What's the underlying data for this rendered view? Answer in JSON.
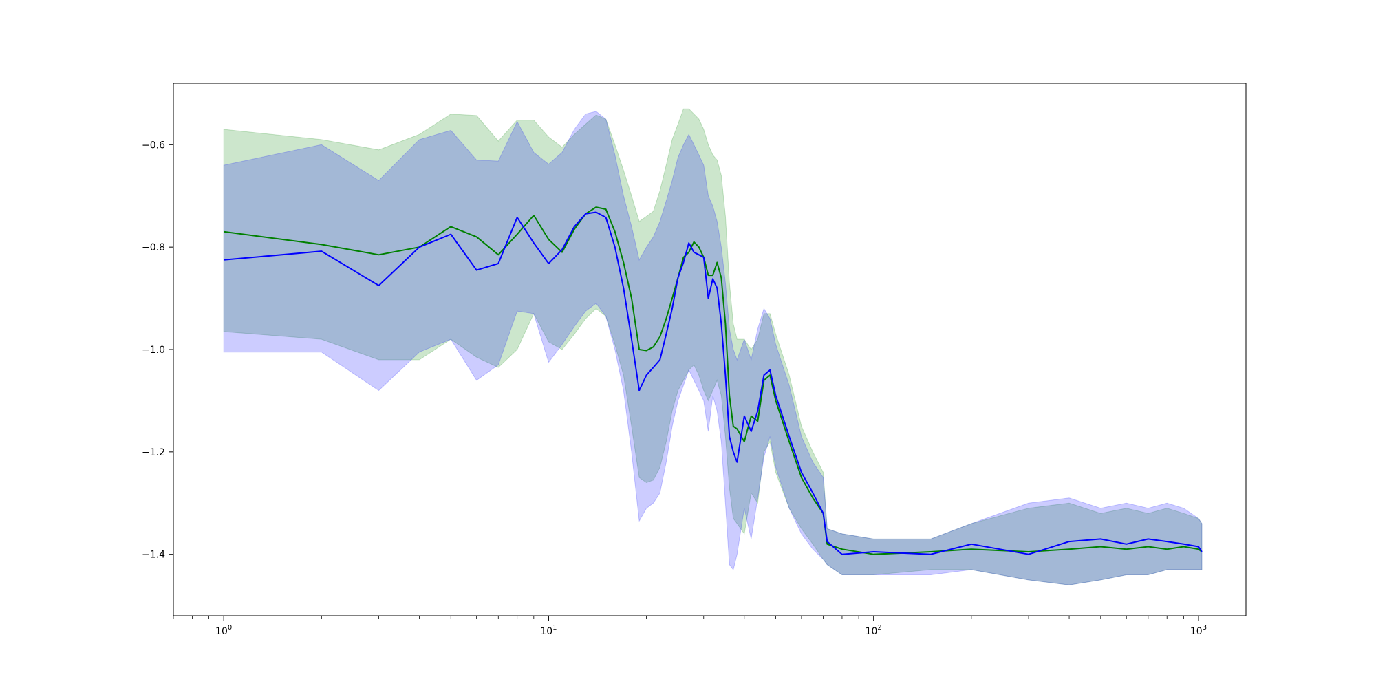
{
  "chart_data": {
    "type": "line",
    "title": "",
    "xlabel": "",
    "ylabel": "",
    "xscale": "log",
    "xlim": [
      0.7,
      1400
    ],
    "ylim": [
      -1.52,
      -0.48
    ],
    "grid": false,
    "legend": "none",
    "x_ticks": [
      {
        "value": 1,
        "base": "10",
        "exp": "0"
      },
      {
        "value": 10,
        "base": "10",
        "exp": "1"
      },
      {
        "value": 100,
        "base": "10",
        "exp": "2"
      },
      {
        "value": 1000,
        "base": "10",
        "exp": "3"
      }
    ],
    "y_ticks": [
      {
        "value": -1.4,
        "label": "−1.4"
      },
      {
        "value": -1.2,
        "label": "−1.2"
      },
      {
        "value": -1.0,
        "label": "−1.0"
      },
      {
        "value": -0.8,
        "label": "−0.8"
      },
      {
        "value": -0.6,
        "label": "−0.6"
      }
    ],
    "series": [
      {
        "color": "#008000",
        "band_color": "#008000",
        "band_opacity": 0.2,
        "x": [
          1,
          2,
          3,
          4,
          5,
          6,
          7,
          8,
          9,
          10,
          11,
          12,
          13,
          14,
          15,
          16,
          17,
          18,
          19,
          20,
          21,
          22,
          23,
          24,
          25,
          26,
          27,
          28,
          29,
          30,
          31,
          32,
          33,
          34,
          35,
          36,
          37,
          38,
          40,
          42,
          44,
          46,
          48,
          50,
          55,
          60,
          65,
          70,
          72,
          80,
          100,
          150,
          200,
          300,
          400,
          500,
          600,
          700,
          800,
          900,
          1000,
          1024
        ],
        "y": [
          -0.77,
          -0.795,
          -0.815,
          -0.8,
          -0.76,
          -0.78,
          -0.815,
          -0.775,
          -0.738,
          -0.785,
          -0.81,
          -0.765,
          -0.735,
          -0.722,
          -0.726,
          -0.77,
          -0.83,
          -0.9,
          -1.0,
          -1.002,
          -0.995,
          -0.975,
          -0.94,
          -0.9,
          -0.86,
          -0.82,
          -0.81,
          -0.79,
          -0.8,
          -0.82,
          -0.855,
          -0.855,
          -0.83,
          -0.86,
          -0.95,
          -1.09,
          -1.15,
          -1.155,
          -1.18,
          -1.13,
          -1.14,
          -1.06,
          -1.05,
          -1.1,
          -1.18,
          -1.25,
          -1.29,
          -1.32,
          -1.38,
          -1.39,
          -1.4,
          -1.395,
          -1.39,
          -1.395,
          -1.39,
          -1.385,
          -1.39,
          -1.385,
          -1.39,
          -1.385,
          -1.39,
          -1.395
        ],
        "upper": [
          -0.57,
          -0.59,
          -0.61,
          -0.58,
          -0.54,
          -0.543,
          -0.593,
          -0.552,
          -0.552,
          -0.585,
          -0.605,
          -0.58,
          -0.56,
          -0.542,
          -0.55,
          -0.6,
          -0.65,
          -0.7,
          -0.75,
          -0.74,
          -0.73,
          -0.69,
          -0.64,
          -0.59,
          -0.56,
          -0.53,
          -0.53,
          -0.54,
          -0.55,
          -0.57,
          -0.6,
          -0.62,
          -0.63,
          -0.66,
          -0.74,
          -0.87,
          -0.95,
          -0.98,
          -0.98,
          -1.0,
          -0.98,
          -0.93,
          -0.93,
          -0.97,
          -1.05,
          -1.15,
          -1.2,
          -1.24,
          -1.35,
          -1.36,
          -1.37,
          -1.37,
          -1.34,
          -1.31,
          -1.3,
          -1.32,
          -1.31,
          -1.32,
          -1.31,
          -1.32,
          -1.33,
          -1.34
        ],
        "lower": [
          -0.965,
          -0.98,
          -1.02,
          -1.02,
          -0.98,
          -1.015,
          -1.035,
          -1.0,
          -0.93,
          -0.985,
          -1.0,
          -0.97,
          -0.94,
          -0.92,
          -0.935,
          -0.99,
          -1.05,
          -1.15,
          -1.25,
          -1.26,
          -1.255,
          -1.23,
          -1.18,
          -1.12,
          -1.08,
          -1.06,
          -1.04,
          -1.03,
          -1.05,
          -1.08,
          -1.1,
          -1.08,
          -1.06,
          -1.09,
          -1.17,
          -1.27,
          -1.33,
          -1.34,
          -1.36,
          -1.28,
          -1.3,
          -1.2,
          -1.18,
          -1.24,
          -1.31,
          -1.35,
          -1.38,
          -1.41,
          -1.42,
          -1.44,
          -1.44,
          -1.43,
          -1.43,
          -1.45,
          -1.46,
          -1.45,
          -1.44,
          -1.44,
          -1.43,
          -1.43,
          -1.43,
          -1.43
        ]
      },
      {
        "color": "#0000ff",
        "band_color": "#0000ff",
        "band_opacity": 0.2,
        "x": [
          1,
          2,
          3,
          4,
          5,
          6,
          7,
          8,
          9,
          10,
          11,
          12,
          13,
          14,
          15,
          16,
          17,
          18,
          19,
          20,
          21,
          22,
          23,
          24,
          25,
          26,
          27,
          28,
          29,
          30,
          31,
          32,
          33,
          34,
          35,
          36,
          37,
          38,
          40,
          42,
          44,
          46,
          48,
          50,
          55,
          60,
          65,
          70,
          72,
          80,
          100,
          150,
          200,
          300,
          400,
          500,
          600,
          700,
          800,
          900,
          1000,
          1024
        ],
        "y": [
          -0.825,
          -0.808,
          -0.875,
          -0.8,
          -0.775,
          -0.845,
          -0.832,
          -0.742,
          -0.792,
          -0.832,
          -0.805,
          -0.76,
          -0.735,
          -0.732,
          -0.742,
          -0.8,
          -0.88,
          -0.98,
          -1.08,
          -1.05,
          -1.035,
          -1.02,
          -0.97,
          -0.92,
          -0.86,
          -0.83,
          -0.792,
          -0.81,
          -0.815,
          -0.82,
          -0.9,
          -0.862,
          -0.88,
          -0.95,
          -1.05,
          -1.17,
          -1.2,
          -1.22,
          -1.13,
          -1.16,
          -1.12,
          -1.05,
          -1.04,
          -1.09,
          -1.17,
          -1.24,
          -1.28,
          -1.32,
          -1.375,
          -1.4,
          -1.395,
          -1.4,
          -1.38,
          -1.4,
          -1.375,
          -1.37,
          -1.38,
          -1.37,
          -1.375,
          -1.38,
          -1.385,
          -1.395
        ],
        "upper": [
          -0.64,
          -0.6,
          -0.67,
          -0.59,
          -0.572,
          -0.63,
          -0.632,
          -0.555,
          -0.615,
          -0.638,
          -0.615,
          -0.57,
          -0.54,
          -0.535,
          -0.55,
          -0.62,
          -0.7,
          -0.76,
          -0.825,
          -0.8,
          -0.78,
          -0.75,
          -0.71,
          -0.67,
          -0.625,
          -0.6,
          -0.58,
          -0.6,
          -0.62,
          -0.64,
          -0.7,
          -0.72,
          -0.75,
          -0.8,
          -0.87,
          -0.96,
          -1.0,
          -1.02,
          -0.98,
          -1.02,
          -0.96,
          -0.92,
          -0.94,
          -0.99,
          -1.07,
          -1.17,
          -1.22,
          -1.25,
          -1.35,
          -1.36,
          -1.37,
          -1.37,
          -1.34,
          -1.3,
          -1.29,
          -1.31,
          -1.3,
          -1.31,
          -1.3,
          -1.31,
          -1.33,
          -1.34
        ],
        "lower": [
          -1.005,
          -1.005,
          -1.08,
          -1.005,
          -0.98,
          -1.06,
          -1.03,
          -0.925,
          -0.93,
          -1.025,
          -0.99,
          -0.955,
          -0.925,
          -0.91,
          -0.935,
          -1.0,
          -1.08,
          -1.2,
          -1.335,
          -1.31,
          -1.3,
          -1.28,
          -1.22,
          -1.15,
          -1.1,
          -1.07,
          -1.04,
          -1.06,
          -1.08,
          -1.1,
          -1.16,
          -1.09,
          -1.12,
          -1.18,
          -1.3,
          -1.42,
          -1.43,
          -1.4,
          -1.31,
          -1.37,
          -1.29,
          -1.21,
          -1.17,
          -1.23,
          -1.31,
          -1.36,
          -1.39,
          -1.41,
          -1.42,
          -1.44,
          -1.44,
          -1.44,
          -1.43,
          -1.45,
          -1.46,
          -1.45,
          -1.44,
          -1.44,
          -1.43,
          -1.43,
          -1.43,
          -1.43
        ]
      }
    ]
  }
}
